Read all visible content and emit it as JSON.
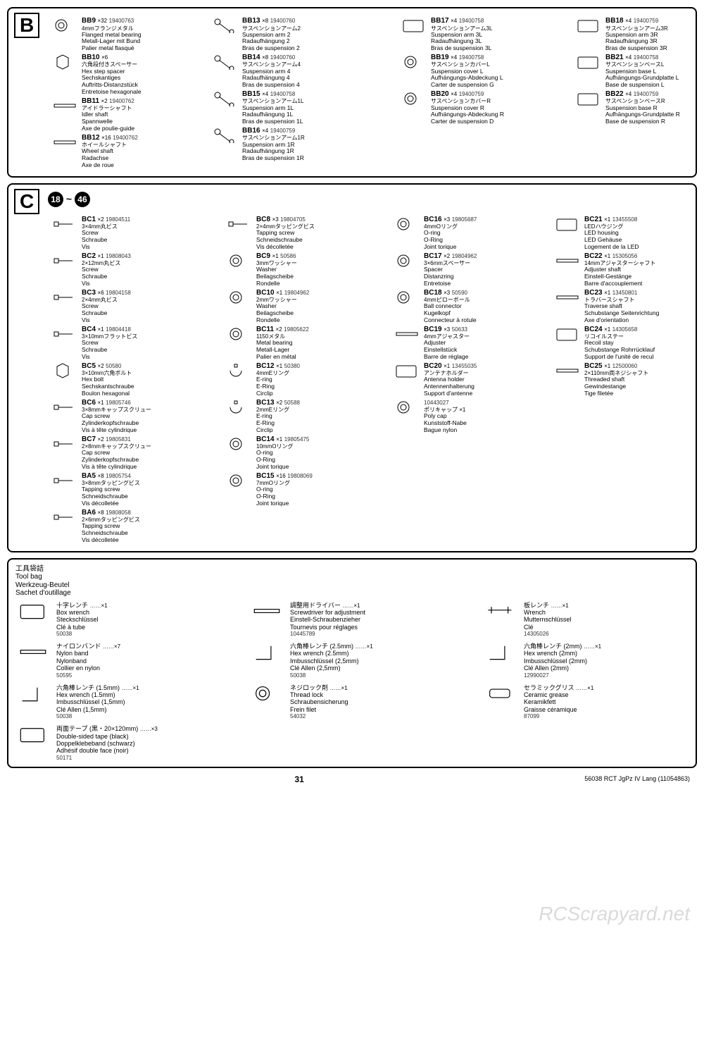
{
  "page": {
    "number": "31",
    "footer_right": "56038  RCT JgPz IV Lang  (11054863)"
  },
  "watermark": "RCScrapyard.net",
  "sectionB": {
    "letter": "B",
    "cols": [
      [
        {
          "code": "BB9",
          "qty": "×32",
          "pn": "19400763",
          "jp": "4mmフランジメタル",
          "lines": [
            "Flanged metal bearing",
            "Metall-Lager mit Bund",
            "Palier metal flasqué"
          ],
          "icon": "bearing-flanged"
        },
        {
          "code": "BB10",
          "qty": "×6",
          "pn": "",
          "jp": "六角段付きスペーサー",
          "lines": [
            "Hex step spacer",
            "Sechskantiges",
            "Auftritts-Distanzstück",
            "Entretoise hexagonale"
          ],
          "icon": "hex-spacer"
        },
        {
          "code": "BB11",
          "qty": "×2",
          "pn": "19400762",
          "jp": "アイドラーシャフト",
          "lines": [
            "Idler shaft",
            "Spannwelle",
            "Axe de poulie-guide"
          ],
          "icon": "shaft-short"
        },
        {
          "code": "BB12",
          "qty": "×16",
          "pn": "19400762",
          "jp": "ホイールシャフト",
          "lines": [
            "Wheel shaft",
            "Radachse",
            "Axe de roue"
          ],
          "icon": "shaft-short"
        }
      ],
      [
        {
          "code": "BB13",
          "qty": "×8",
          "pn": "19400760",
          "jp": "サスペンションアーム2",
          "lines": [
            "Suspension arm 2",
            "Radaufhängung 2",
            "Bras de suspension 2"
          ],
          "icon": "arm-a"
        },
        {
          "code": "BB14",
          "qty": "×8",
          "pn": "19400760",
          "jp": "サスペンションアーム4",
          "lines": [
            "Suspension arm 4",
            "Radaufhängung 4",
            "Bras de suspension 4"
          ],
          "icon": "arm-b"
        },
        {
          "code": "BB15",
          "qty": "×4",
          "pn": "19400758",
          "jp": "サスペンションアーム1L",
          "lines": [
            "Suspension arm 1L",
            "Radaufhängung 1L",
            "Bras de suspension 1L"
          ],
          "icon": "arm-c"
        },
        {
          "code": "BB16",
          "qty": "×4",
          "pn": "19400759",
          "jp": "サスペンションアーム1R",
          "lines": [
            "Suspension arm 1R",
            "Radaufhängung 1R",
            "Bras de suspension 1R"
          ],
          "icon": "arm-c"
        }
      ],
      [
        {
          "code": "BB17",
          "qty": "×4",
          "pn": "19400758",
          "jp": "サスペンションアーム3L",
          "lines": [
            "Suspension arm 3L",
            "Radaufhängung 3L",
            "Bras de suspension 3L"
          ],
          "icon": "bracket"
        },
        {
          "code": "BB19",
          "qty": "×4",
          "pn": "19400758",
          "jp": "サスペンションカバーL",
          "lines": [
            "Suspension cover L",
            "Aufhängungs-Abdeckung L",
            "Carter de suspension G"
          ],
          "icon": "cover"
        },
        {
          "code": "BB20",
          "qty": "×4",
          "pn": "19400759",
          "jp": "サスペンションカバーR",
          "lines": [
            "Suspension cover R",
            "Aufhängungs-Abdeckung R",
            "Carter de suspension D"
          ],
          "icon": "cover"
        }
      ],
      [
        {
          "code": "BB18",
          "qty": "×4",
          "pn": "19400759",
          "jp": "サスペンションアーム3R",
          "lines": [
            "Suspension arm 3R",
            "Radaufhängung 3R",
            "Bras de suspension 3R"
          ],
          "icon": "bracket"
        },
        {
          "code": "BB21",
          "qty": "×4",
          "pn": "19400758",
          "jp": "サスペンションベースL",
          "lines": [
            "Suspension base L",
            "Aufhängungs-Grundplatte L",
            "Base de suspension L"
          ],
          "icon": "base-l"
        },
        {
          "code": "BB22",
          "qty": "×4",
          "pn": "19400759",
          "jp": "サスペンションベースR",
          "lines": [
            "Suspension base R",
            "Aufhängungs-Grundplatte R",
            "Base de suspension R"
          ],
          "icon": "base-r"
        }
      ]
    ]
  },
  "sectionC": {
    "letter": "C",
    "steps_from": "18",
    "steps_to": "46",
    "cols": [
      [
        {
          "code": "BC1",
          "qty": "×2",
          "pn": "19804511",
          "jp": "3×4mm丸ビス",
          "lines": [
            "Screw",
            "Schraube",
            "Vis"
          ],
          "icon": "screw"
        },
        {
          "code": "BC2",
          "qty": "×1",
          "pn": "19808043",
          "jp": "2×12mm丸ビス",
          "lines": [
            "Screw",
            "Schraube",
            "Vis"
          ],
          "icon": "screw-long"
        },
        {
          "code": "BC3",
          "qty": "×6",
          "pn": "19804158",
          "jp": "2×4mm丸ビス",
          "lines": [
            "Screw",
            "Schraube",
            "Vis"
          ],
          "icon": "screw"
        },
        {
          "code": "BC4",
          "qty": "×1",
          "pn": "19804418",
          "jp": "3×10mmフラットビス",
          "lines": [
            "Screw",
            "Schraube",
            "Vis"
          ],
          "icon": "screw-flat"
        },
        {
          "code": "BC5",
          "qty": "×2",
          "pn": "50580",
          "jp": "3×10mm六角ボルト",
          "lines": [
            "Hex bolt",
            "Sechskantschraube",
            "Boulon hexagonal"
          ],
          "icon": "hex-bolt"
        },
        {
          "code": "BC6",
          "qty": "×1",
          "pn": "19805746",
          "jp": "3×8mmキャップスクリュー",
          "lines": [
            "Cap screw",
            "Zylinderkopfschraube",
            "Vis à tête cylindrique"
          ],
          "icon": "cap-screw"
        },
        {
          "code": "BC7",
          "qty": "×2",
          "pn": "19805831",
          "jp": "2×8mmキャップスクリュー",
          "lines": [
            "Cap screw",
            "Zylinderkopfschraube",
            "Vis à tête cylindrique"
          ],
          "icon": "cap-screw"
        },
        {
          "code": "BA5",
          "qty": "×8",
          "pn": "19805754",
          "jp": "3×8mmタッピングビス",
          "lines": [
            "Tapping screw",
            "Schneidschraube",
            "Vis décolletée"
          ],
          "icon": "tapping"
        },
        {
          "code": "BA6",
          "qty": "×8",
          "pn": "19808058",
          "jp": "2×6mmタッピングビス",
          "lines": [
            "Tapping screw",
            "Schneidschraube",
            "Vis décolletée"
          ],
          "icon": "tapping"
        }
      ],
      [
        {
          "code": "BC8",
          "qty": "×3",
          "pn": "19804705",
          "jp": "2×4mmタッピングビス",
          "lines": [
            "Tapping screw",
            "Schneidschraube",
            "Vis décolletée"
          ],
          "icon": "tapping"
        },
        {
          "code": "BC9",
          "qty": "×1",
          "pn": "50586",
          "jp": "3mmワッシャー",
          "lines": [
            "Washer",
            "Beilagscheibe",
            "Rondelle"
          ],
          "icon": "washer"
        },
        {
          "code": "BC10",
          "qty": "×1",
          "pn": "19804962",
          "jp": "2mmワッシャー",
          "lines": [
            "Washer",
            "Beilagscheibe",
            "Rondelle"
          ],
          "icon": "washer"
        },
        {
          "code": "BC11",
          "qty": "×2",
          "pn": "19805622",
          "jp": "1150メタル",
          "lines": [
            "Metal bearing",
            "Metall-Lager",
            "Palier en métal"
          ],
          "icon": "bearing"
        },
        {
          "code": "BC12",
          "qty": "×1",
          "pn": "50380",
          "jp": "4mmEリング",
          "lines": [
            "E-ring",
            "E-Ring",
            "Circlip"
          ],
          "icon": "ering"
        },
        {
          "code": "BC13",
          "qty": "×2",
          "pn": "50588",
          "jp": "2mmEリング",
          "lines": [
            "E-ring",
            "E-Ring",
            "Circlip"
          ],
          "icon": "ering"
        },
        {
          "code": "BC14",
          "qty": "×1",
          "pn": "19805475",
          "jp": "10mmOリング",
          "lines": [
            "O-ring",
            "O-Ring",
            "Joint torique"
          ],
          "icon": "oring-lg"
        },
        {
          "code": "BC15",
          "qty": "×16",
          "pn": "19808069",
          "jp": "7mmOリング",
          "lines": [
            "O-ring",
            "O-Ring",
            "Joint torique"
          ],
          "icon": "oring-lg"
        }
      ],
      [
        {
          "code": "BC16",
          "qty": "×3",
          "pn": "19805687",
          "jp": "4mmOリング",
          "lines": [
            "O-ring",
            "O-Ring",
            "Joint torique"
          ],
          "icon": "oring"
        },
        {
          "code": "BC17",
          "qty": "×2",
          "pn": "19804962",
          "jp": "3×6mmスペーサー",
          "lines": [
            "Spacer",
            "Distanzring",
            "Entretoise"
          ],
          "icon": "spacer"
        },
        {
          "code": "BC18",
          "qty": "×3",
          "pn": "50590",
          "jp": "4mmピローボール",
          "lines": [
            "Ball connector",
            "Kugelkopf",
            "Connecteur à rotule"
          ],
          "icon": "ball"
        },
        {
          "code": "BC19",
          "qty": "×3",
          "pn": "50633",
          "jp": "4mmアジャスター",
          "lines": [
            "Adjuster",
            "Einstellstück",
            "Barre de réglage"
          ],
          "icon": "adjuster"
        },
        {
          "code": "BC20",
          "qty": "×1",
          "pn": "13455035",
          "jp": "アンテナホルダー",
          "lines": [
            "Antenna holder",
            "Antennenhalterung",
            "Support d'antenne"
          ],
          "icon": "antenna"
        },
        {
          "code": "",
          "qty": "",
          "pn": "10443027",
          "jp": "ポリキャップ ×1",
          "lines": [
            "Poly cap",
            "Kunststoff-Nabe",
            "Bague nylon"
          ],
          "icon": "polycap"
        }
      ],
      [
        {
          "code": "BC21",
          "qty": "×1",
          "pn": "13455508",
          "jp": "LEDハウジング",
          "lines": [
            "LED housing",
            "LED Gehäuse",
            "Logement de la LED"
          ],
          "icon": "led"
        },
        {
          "code": "BC22",
          "qty": "×1",
          "pn": "15305056",
          "jp": "14mmアジャスターシャフト",
          "lines": [
            "Adjuster shaft",
            "Einstell-Gestänge",
            "Barre d'accouplement"
          ],
          "icon": "shaft"
        },
        {
          "code": "BC23",
          "qty": "×1",
          "pn": "13450801",
          "jp": "トラバースシャフト",
          "lines": [
            "Traverse shaft",
            "Schubstange Seitenrichtung",
            "Axe d'orientation"
          ],
          "icon": "traverse"
        },
        {
          "code": "BC24",
          "qty": "×1",
          "pn": "14305658",
          "jp": "リコイルステー",
          "lines": [
            "Recoil stay",
            "Schubstange Rohrrücklauf",
            "Support de l'unité de recul"
          ],
          "icon": "recoil"
        },
        {
          "code": "BC25",
          "qty": "×1",
          "pn": "12500060",
          "jp": "2×110mm両ネジシャフト",
          "lines": [
            "Threaded shaft",
            "Gewindestange",
            "Tige filetée"
          ],
          "icon": "threaded"
        }
      ]
    ]
  },
  "tools": {
    "header": {
      "jp": "工具袋詰",
      "lines": [
        "Tool bag",
        "Werkzeug-Beutel",
        "Sachet d'outillage"
      ]
    },
    "items": [
      {
        "jp": "十字レンチ",
        "lines": [
          "Box wrench",
          "Steckschlüssel",
          "Clé à tube"
        ],
        "pn": "50038",
        "qty": "……×1",
        "icon": "box-wrench"
      },
      {
        "jp": "調整用ドライバー",
        "lines": [
          "Screwdriver for adjustment",
          "Einstell-Schraubenzieher",
          "Tournevis pour réglages"
        ],
        "pn": "10445789",
        "qty": "……×1",
        "icon": "screwdriver"
      },
      {
        "jp": "板レンチ",
        "lines": [
          "Wrench",
          "Mutternschlüssel",
          "Clé"
        ],
        "pn": "14305026",
        "qty": "……×1",
        "icon": "wrench"
      },
      {
        "jp": "ナイロンバンド",
        "lines": [
          "Nylon band",
          "Nylonband",
          "Collier en nylon"
        ],
        "pn": "50595",
        "qty": "……×7",
        "icon": "tie"
      },
      {
        "jp": "六角棒レンチ (2.5mm)",
        "lines": [
          "Hex wrench (2.5mm)",
          "Imbusschlüssel (2,5mm)",
          "Clé Allen (2,5mm)"
        ],
        "pn": "50038",
        "qty": "……×1",
        "icon": "hex-wrench"
      },
      {
        "jp": "六角棒レンチ (2mm)",
        "lines": [
          "Hex wrench (2mm)",
          "Imbusschlüssel (2mm)",
          "Clé Allen (2mm)"
        ],
        "pn": "12990027",
        "qty": "……×1",
        "icon": "hex-wrench"
      },
      {
        "jp": "六角棒レンチ (1.5mm)",
        "lines": [
          "Hex wrench (1.5mm)",
          "Imbusschlüssel (1,5mm)",
          "Clé Allen (1,5mm)"
        ],
        "pn": "50038",
        "qty": "……×1",
        "icon": "hex-wrench"
      },
      {
        "jp": "ネジロック剤",
        "lines": [
          "Thread lock",
          "Schraubensicherung",
          "Frein filet"
        ],
        "pn": "54032",
        "qty": "……×1",
        "icon": "thread-lock"
      },
      {
        "jp": "セラミックグリス",
        "lines": [
          "Ceramic grease",
          "Keramikfett",
          "Graisse céramique"
        ],
        "pn": "87099",
        "qty": "……×1",
        "icon": "grease"
      },
      {
        "jp": "両面テープ (黒・20×120mm)",
        "lines": [
          "Double-sided tape (black)",
          "Doppelklebeband (schwarz)",
          "Adhésif double face (noir)"
        ],
        "pn": "50171",
        "qty": "……×3",
        "icon": "tape"
      }
    ]
  }
}
